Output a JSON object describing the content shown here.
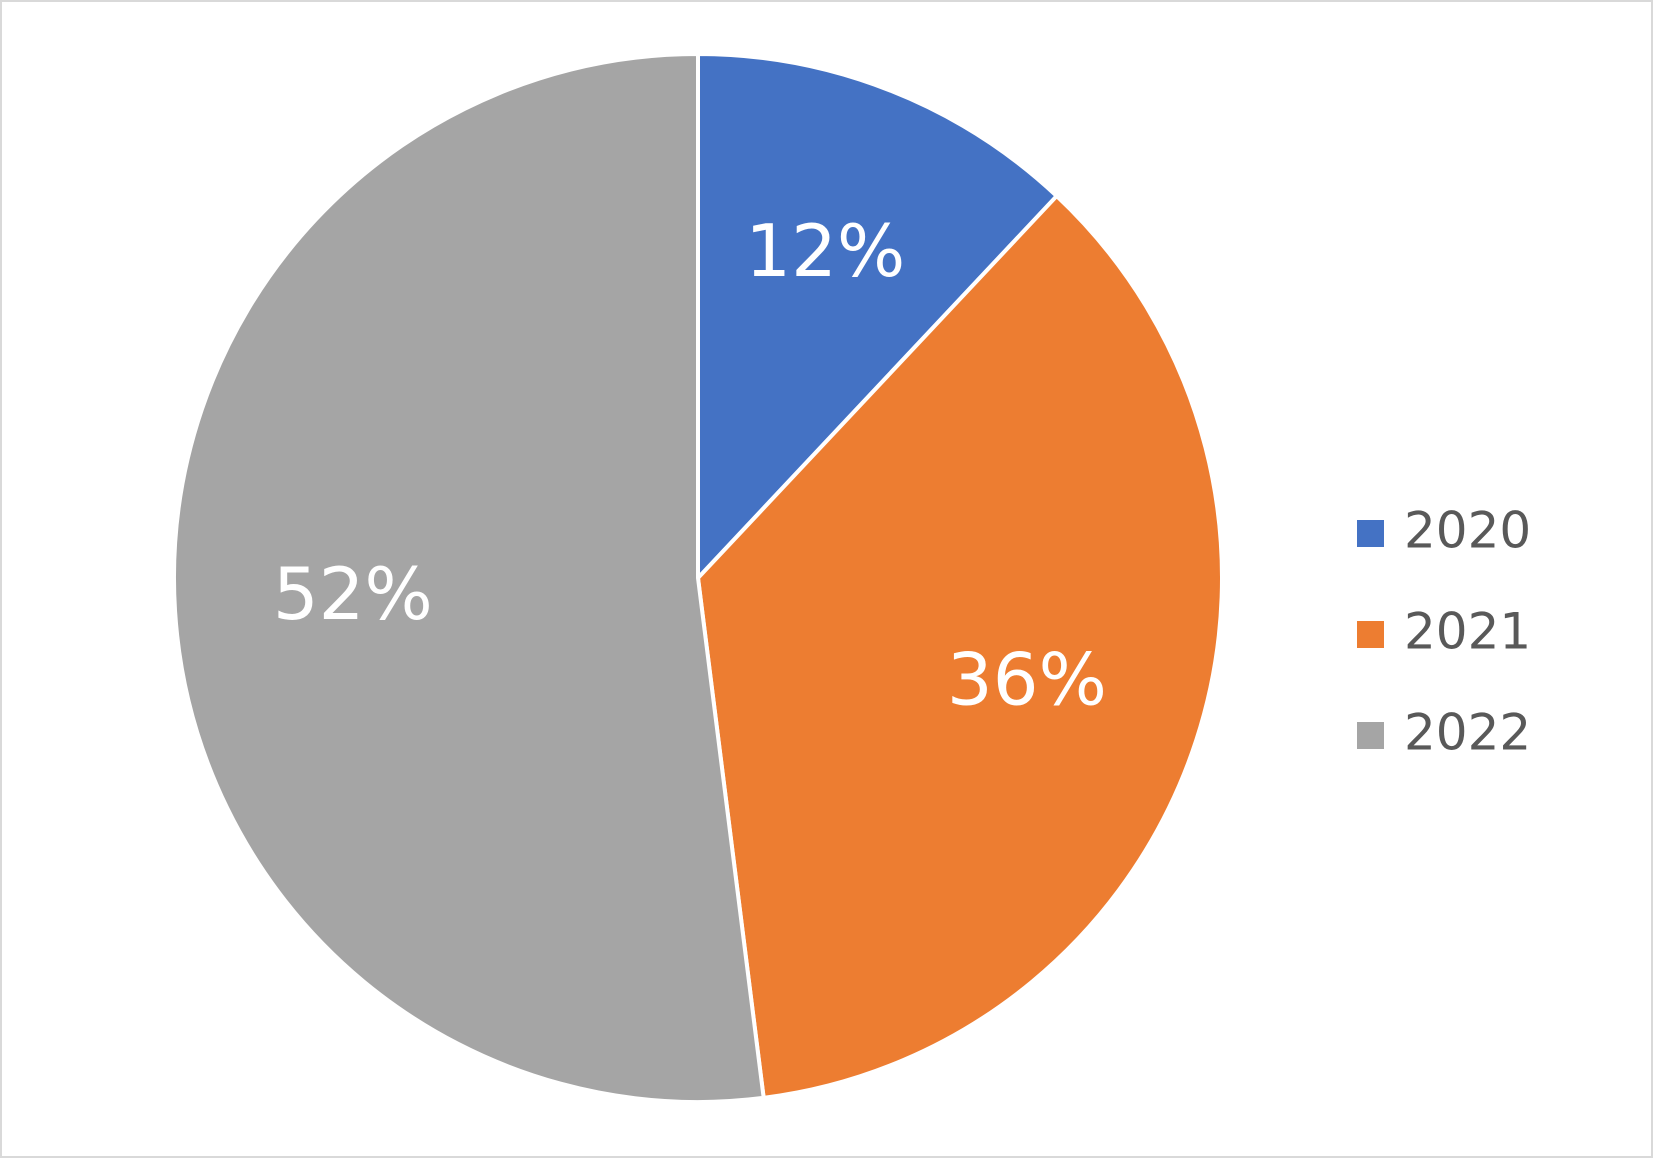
{
  "chart_data": {
    "type": "pie",
    "categories": [
      "2020",
      "2021",
      "2022"
    ],
    "values": [
      12,
      36,
      52
    ],
    "value_labels": [
      "12%",
      "36%",
      "52%"
    ],
    "colors": [
      "#4472c4",
      "#ed7d31",
      "#a5a5a5"
    ],
    "legend": "right"
  }
}
